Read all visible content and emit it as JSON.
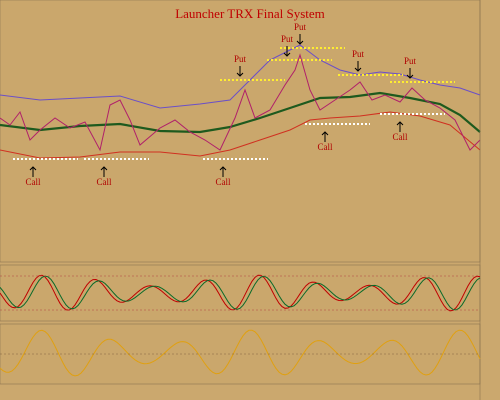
{
  "header": {
    "title": "Launcher TRX Final System"
  },
  "signals": [
    {
      "label": "Put"
    },
    {
      "label": "Put"
    },
    {
      "label": "Put"
    },
    {
      "label": "Put"
    },
    {
      "label": "Put"
    },
    {
      "label": "Call"
    },
    {
      "label": "Call"
    },
    {
      "label": "Call"
    },
    {
      "label": "Call"
    },
    {
      "label": "Call"
    }
  ]
}
